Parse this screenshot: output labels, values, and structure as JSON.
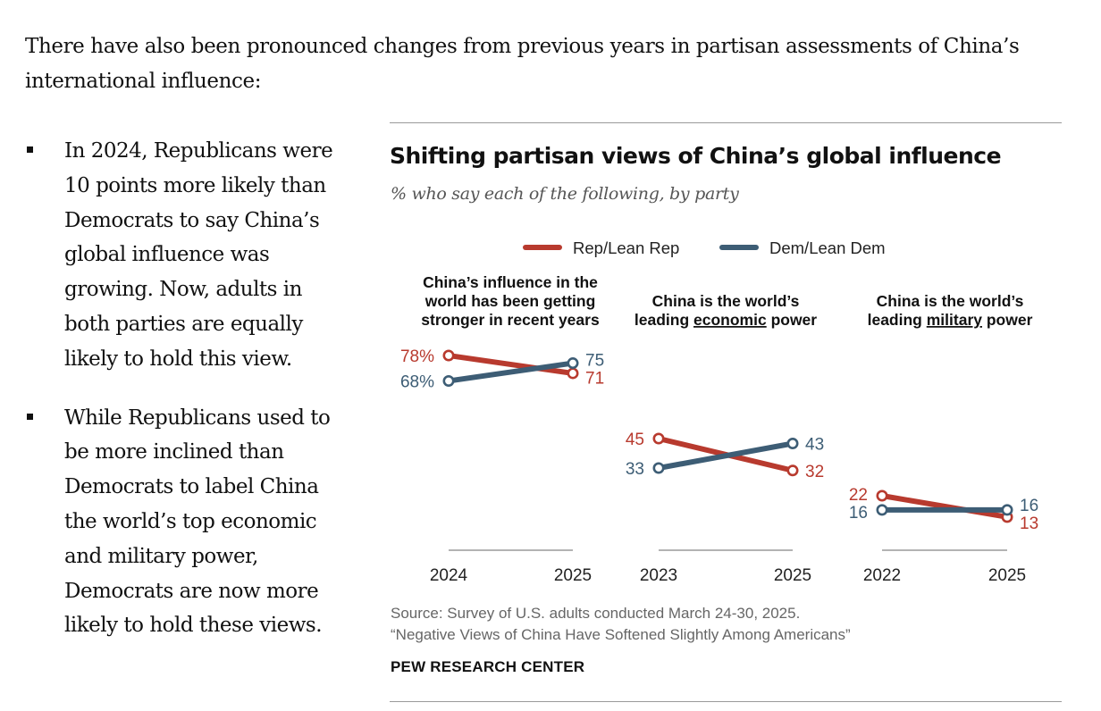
{
  "intro": "There have also been pronounced changes from previous years in partisan assessments of China’s international influence:",
  "bullets": [
    {
      "lines": [
        "In 2024, Republicans were",
        "10 points more likely than",
        "Democrats to say China’s",
        "global influence was",
        "growing. Now, adults in",
        "both parties are equally",
        "likely to hold this view."
      ]
    },
    {
      "lines": [
        "While Republicans used to",
        "be more inclined than",
        "Democrats to label China",
        "the world’s top economic",
        "and military power,",
        "Democrats are now more",
        "likely to hold these views."
      ]
    }
  ],
  "colors": {
    "rep": "#b83a2e",
    "dem": "#3d5d75",
    "axis": "#9a9a9a"
  },
  "chart_data": {
    "type": "line",
    "title": "Shifting partisan views of China’s global influence",
    "subtitle": "% who say each of the following, by party",
    "legend": {
      "placement": "top",
      "items": [
        {
          "name": "Rep/Lean Rep",
          "color": "#b83a2e"
        },
        {
          "name": "Dem/Lean Dem",
          "color": "#3d5d75"
        }
      ]
    },
    "panels": [
      {
        "title_lines": [
          [
            "China’s influence in the"
          ],
          [
            "world has been getting"
          ],
          [
            "stronger in recent years"
          ]
        ],
        "x": [
          "2024",
          "2025"
        ],
        "series": [
          {
            "name": "Rep/Lean Rep",
            "values": [
              78,
              71
            ],
            "labels": [
              "78%",
              "71"
            ]
          },
          {
            "name": "Dem/Lean Dem",
            "values": [
              68,
              75
            ],
            "labels": [
              "68%",
              "75"
            ]
          }
        ]
      },
      {
        "title_lines": [
          [
            "China is the world’s"
          ],
          [
            "leading ",
            {
              "u": "economic"
            },
            " power"
          ]
        ],
        "x": [
          "2023",
          "2025"
        ],
        "series": [
          {
            "name": "Rep/Lean Rep",
            "values": [
              45,
              32
            ],
            "labels": [
              "45",
              "32"
            ]
          },
          {
            "name": "Dem/Lean Dem",
            "values": [
              33,
              43
            ],
            "labels": [
              "33",
              "43"
            ]
          }
        ]
      },
      {
        "title_lines": [
          [
            "China is the world’s"
          ],
          [
            "leading ",
            {
              "u": "military"
            },
            " power"
          ]
        ],
        "x": [
          "2022",
          "2025"
        ],
        "series": [
          {
            "name": "Rep/Lean Rep",
            "values": [
              22,
              13
            ],
            "labels": [
              "22",
              "13"
            ]
          },
          {
            "name": "Dem/Lean Dem",
            "values": [
              16,
              16
            ],
            "labels": [
              "16",
              "16"
            ]
          }
        ]
      }
    ],
    "ylim": [
      0,
      100
    ],
    "grid": false
  },
  "footer": {
    "source": "Source: Survey of U.S. adults conducted March 24-30, 2025.",
    "report": "“Negative Views of China Have Softened Slightly Among Americans”",
    "org": "PEW RESEARCH CENTER"
  }
}
